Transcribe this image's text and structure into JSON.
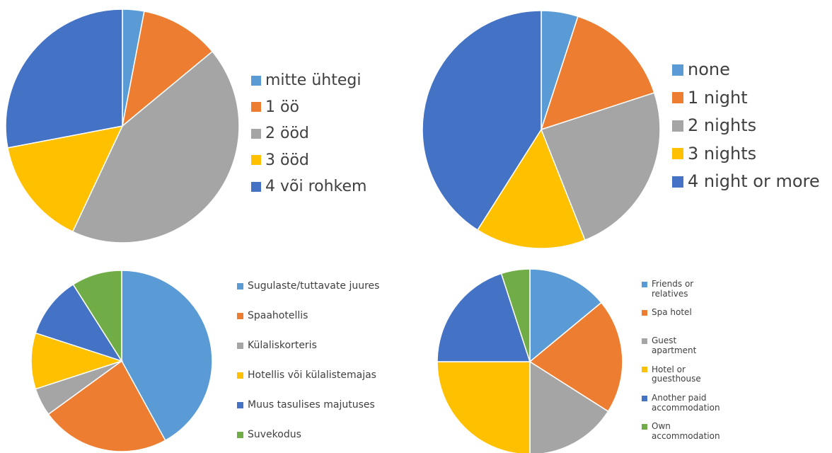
{
  "chart_data": [
    {
      "type": "pie",
      "categories": [
        "mitte ühtegi",
        "1 öö",
        "2 ööd",
        "3 ööd",
        "4 või rohkem"
      ],
      "values": [
        3,
        11,
        43,
        15,
        28
      ],
      "colors": [
        "#5b9bd5",
        "#ed7d31",
        "#a5a5a5",
        "#ffc000",
        "#4472c4"
      ],
      "legend": "right"
    },
    {
      "type": "pie",
      "categories": [
        "none",
        "1 night",
        "2 nights",
        "3 nights",
        "4 night or more"
      ],
      "values": [
        5,
        15,
        24,
        15,
        41
      ],
      "colors": [
        "#5b9bd5",
        "#ed7d31",
        "#a5a5a5",
        "#ffc000",
        "#4472c4"
      ],
      "legend": "right"
    },
    {
      "type": "pie",
      "categories": [
        "Sugulaste/tuttavate juures",
        "Spaahotellis",
        "Külaliskorteris",
        "Hotellis või külalistemajas",
        "Muus tasulises majutuses",
        "Suvekodus"
      ],
      "values": [
        42,
        23,
        5,
        10,
        11,
        9
      ],
      "colors": [
        "#5b9bd5",
        "#ed7d31",
        "#a5a5a5",
        "#ffc000",
        "#4472c4",
        "#70ad47"
      ],
      "legend": "right"
    },
    {
      "type": "pie",
      "categories": [
        "Friends or relatives",
        "Spa hotel",
        "Guest apartment",
        "Hotel or guesthouse",
        "Another paid accommodation",
        "Own accommodation"
      ],
      "values": [
        14,
        20,
        16,
        25,
        20,
        5
      ],
      "colors": [
        "#5b9bd5",
        "#ed7d31",
        "#a5a5a5",
        "#ffc000",
        "#4472c4",
        "#70ad47"
      ],
      "legend": "right"
    }
  ]
}
